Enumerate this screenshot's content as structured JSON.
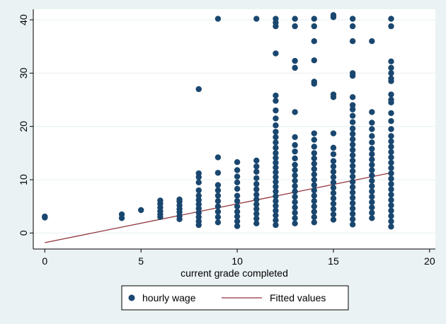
{
  "chart_data": {
    "type": "scatter",
    "title": "",
    "xlabel": "current grade completed",
    "ylabel": "",
    "xlim": [
      -0.6,
      20.3
    ],
    "ylim": [
      -3,
      42
    ],
    "xticks": [
      0,
      5,
      10,
      15,
      20
    ],
    "yticks": [
      0,
      10,
      20,
      30,
      40
    ],
    "grid": "horizontal",
    "legend_position": "bottom",
    "colors": {
      "scatter": "#1a476f",
      "fit": "#90353b",
      "background": "#eaf2f3",
      "plot_bg": "#ffffff",
      "grid": "#eaf2f3"
    },
    "series": [
      {
        "name": "hourly wage",
        "kind": "scatter",
        "points": [
          [
            0,
            2.9
          ],
          [
            0,
            3.1
          ],
          [
            4,
            2.8
          ],
          [
            4,
            3.5
          ],
          [
            5,
            4.3
          ],
          [
            6,
            3.0
          ],
          [
            6,
            3.5
          ],
          [
            6,
            4.1
          ],
          [
            6,
            4.8
          ],
          [
            6,
            5.5
          ],
          [
            6,
            6.1
          ],
          [
            7,
            2.6
          ],
          [
            7,
            3.2
          ],
          [
            7,
            3.9
          ],
          [
            7,
            4.5
          ],
          [
            7,
            5.2
          ],
          [
            7,
            5.9
          ],
          [
            7,
            6.3
          ],
          [
            8,
            1.5
          ],
          [
            8,
            2.2
          ],
          [
            8,
            3.0
          ],
          [
            8,
            3.8
          ],
          [
            8,
            4.6
          ],
          [
            8,
            5.4
          ],
          [
            8,
            6.2
          ],
          [
            8,
            7.0
          ],
          [
            8,
            8.0
          ],
          [
            8,
            9.5
          ],
          [
            8,
            10.5
          ],
          [
            8,
            11.2
          ],
          [
            8,
            27.0
          ],
          [
            9,
            2.0
          ],
          [
            9,
            3.0
          ],
          [
            9,
            4.0
          ],
          [
            9,
            5.0
          ],
          [
            9,
            6.0
          ],
          [
            9,
            7.0
          ],
          [
            9,
            8.0
          ],
          [
            9,
            9.0
          ],
          [
            9,
            11.3
          ],
          [
            9,
            14.2
          ],
          [
            9,
            40.2
          ],
          [
            10,
            1.3
          ],
          [
            10,
            2.2
          ],
          [
            10,
            3.1
          ],
          [
            10,
            4.0
          ],
          [
            10,
            5.0
          ],
          [
            10,
            6.0
          ],
          [
            10,
            7.0
          ],
          [
            10,
            8.3
          ],
          [
            10,
            9.5
          ],
          [
            10,
            10.6
          ],
          [
            10,
            11.8
          ],
          [
            10,
            13.3
          ],
          [
            11,
            1.8
          ],
          [
            11,
            2.7
          ],
          [
            11,
            3.6
          ],
          [
            11,
            4.5
          ],
          [
            11,
            5.4
          ],
          [
            11,
            6.3
          ],
          [
            11,
            7.2
          ],
          [
            11,
            8.2
          ],
          [
            11,
            9.2
          ],
          [
            11,
            10.3
          ],
          [
            11,
            11.5
          ],
          [
            11,
            12.5
          ],
          [
            11,
            13.6
          ],
          [
            11,
            40.2
          ],
          [
            12,
            1.5
          ],
          [
            12,
            2.4
          ],
          [
            12,
            3.3
          ],
          [
            12,
            4.2
          ],
          [
            12,
            5.1
          ],
          [
            12,
            6.0
          ],
          [
            12,
            6.9
          ],
          [
            12,
            7.8
          ],
          [
            12,
            8.7
          ],
          [
            12,
            9.6
          ],
          [
            12,
            10.5
          ],
          [
            12,
            11.4
          ],
          [
            12,
            12.3
          ],
          [
            12,
            13.2
          ],
          [
            12,
            14.1
          ],
          [
            12,
            15.0
          ],
          [
            12,
            16.0
          ],
          [
            12,
            17.0
          ],
          [
            12,
            18.0
          ],
          [
            12,
            19.0
          ],
          [
            12,
            20.2
          ],
          [
            12,
            21.5
          ],
          [
            12,
            23.0
          ],
          [
            12,
            24.8
          ],
          [
            12,
            25.8
          ],
          [
            12,
            33.7
          ],
          [
            12,
            38.8
          ],
          [
            12,
            39.5
          ],
          [
            12,
            40.2
          ],
          [
            13,
            1.8
          ],
          [
            13,
            2.8
          ],
          [
            13,
            3.8
          ],
          [
            13,
            4.8
          ],
          [
            13,
            5.8
          ],
          [
            13,
            6.8
          ],
          [
            13,
            7.8
          ],
          [
            13,
            8.8
          ],
          [
            13,
            9.8
          ],
          [
            13,
            10.8
          ],
          [
            13,
            11.8
          ],
          [
            13,
            12.8
          ],
          [
            13,
            14.0
          ],
          [
            13,
            15.3
          ],
          [
            13,
            16.5
          ],
          [
            13,
            18.0
          ],
          [
            13,
            22.7
          ],
          [
            13,
            31.0
          ],
          [
            13,
            32.3
          ],
          [
            13,
            38.8
          ],
          [
            13,
            40.2
          ],
          [
            14,
            2.0
          ],
          [
            14,
            3.0
          ],
          [
            14,
            4.0
          ],
          [
            14,
            5.0
          ],
          [
            14,
            6.0
          ],
          [
            14,
            7.0
          ],
          [
            14,
            8.0
          ],
          [
            14,
            9.0
          ],
          [
            14,
            10.0
          ],
          [
            14,
            11.0
          ],
          [
            14,
            12.0
          ],
          [
            14,
            13.0
          ],
          [
            14,
            14.0
          ],
          [
            14,
            15.0
          ],
          [
            14,
            16.2
          ],
          [
            14,
            17.5
          ],
          [
            14,
            18.7
          ],
          [
            14,
            28.0
          ],
          [
            14,
            28.4
          ],
          [
            14,
            32.4
          ],
          [
            14,
            36.0
          ],
          [
            14,
            38.8
          ],
          [
            14,
            40.2
          ],
          [
            15,
            2.5
          ],
          [
            15,
            3.5
          ],
          [
            15,
            4.5
          ],
          [
            15,
            5.5
          ],
          [
            15,
            6.5
          ],
          [
            15,
            7.5
          ],
          [
            15,
            8.5
          ],
          [
            15,
            9.5
          ],
          [
            15,
            10.5
          ],
          [
            15,
            11.5
          ],
          [
            15,
            12.5
          ],
          [
            15,
            13.5
          ],
          [
            15,
            14.8
          ],
          [
            15,
            16.0
          ],
          [
            15,
            18.7
          ],
          [
            15,
            25.5
          ],
          [
            15,
            26.0
          ],
          [
            15,
            40.5
          ],
          [
            15,
            40.9
          ],
          [
            16,
            1.6
          ],
          [
            16,
            2.6
          ],
          [
            16,
            3.6
          ],
          [
            16,
            4.6
          ],
          [
            16,
            5.6
          ],
          [
            16,
            6.6
          ],
          [
            16,
            7.6
          ],
          [
            16,
            8.6
          ],
          [
            16,
            9.6
          ],
          [
            16,
            10.6
          ],
          [
            16,
            11.6
          ],
          [
            16,
            12.6
          ],
          [
            16,
            13.6
          ],
          [
            16,
            14.6
          ],
          [
            16,
            15.6
          ],
          [
            16,
            16.6
          ],
          [
            16,
            17.6
          ],
          [
            16,
            18.6
          ],
          [
            16,
            19.6
          ],
          [
            16,
            20.8
          ],
          [
            16,
            22.0
          ],
          [
            16,
            23.2
          ],
          [
            16,
            24.0
          ],
          [
            16,
            25.5
          ],
          [
            16,
            29.5
          ],
          [
            16,
            30.0
          ],
          [
            16,
            36.0
          ],
          [
            16,
            38.8
          ],
          [
            16,
            40.2
          ],
          [
            17,
            2.8
          ],
          [
            17,
            3.8
          ],
          [
            17,
            4.8
          ],
          [
            17,
            5.8
          ],
          [
            17,
            6.8
          ],
          [
            17,
            7.8
          ],
          [
            17,
            8.8
          ],
          [
            17,
            9.8
          ],
          [
            17,
            10.8
          ],
          [
            17,
            11.8
          ],
          [
            17,
            12.8
          ],
          [
            17,
            13.8
          ],
          [
            17,
            14.8
          ],
          [
            17,
            15.8
          ],
          [
            17,
            17.0
          ],
          [
            17,
            18.2
          ],
          [
            17,
            19.5
          ],
          [
            17,
            20.7
          ],
          [
            17,
            22.7
          ],
          [
            17,
            36.0
          ],
          [
            18,
            1.2
          ],
          [
            18,
            2.2
          ],
          [
            18,
            3.2
          ],
          [
            18,
            4.2
          ],
          [
            18,
            5.2
          ],
          [
            18,
            6.2
          ],
          [
            18,
            7.2
          ],
          [
            18,
            8.2
          ],
          [
            18,
            9.2
          ],
          [
            18,
            10.2
          ],
          [
            18,
            11.2
          ],
          [
            18,
            12.2
          ],
          [
            18,
            13.2
          ],
          [
            18,
            14.2
          ],
          [
            18,
            15.2
          ],
          [
            18,
            16.2
          ],
          [
            18,
            17.2
          ],
          [
            18,
            18.2
          ],
          [
            18,
            19.5
          ],
          [
            18,
            21.0
          ],
          [
            18,
            22.5
          ],
          [
            18,
            24.5
          ],
          [
            18,
            25.0
          ],
          [
            18,
            26.0
          ],
          [
            18,
            28.5
          ],
          [
            18,
            29.0
          ],
          [
            18,
            30.0
          ],
          [
            18,
            31.0
          ],
          [
            18,
            32.2
          ],
          [
            18,
            38.8
          ],
          [
            18,
            40.2
          ]
        ]
      },
      {
        "name": "Fitted values",
        "kind": "line",
        "points": [
          [
            0,
            -1.8
          ],
          [
            18,
            11.3
          ]
        ]
      }
    ]
  }
}
